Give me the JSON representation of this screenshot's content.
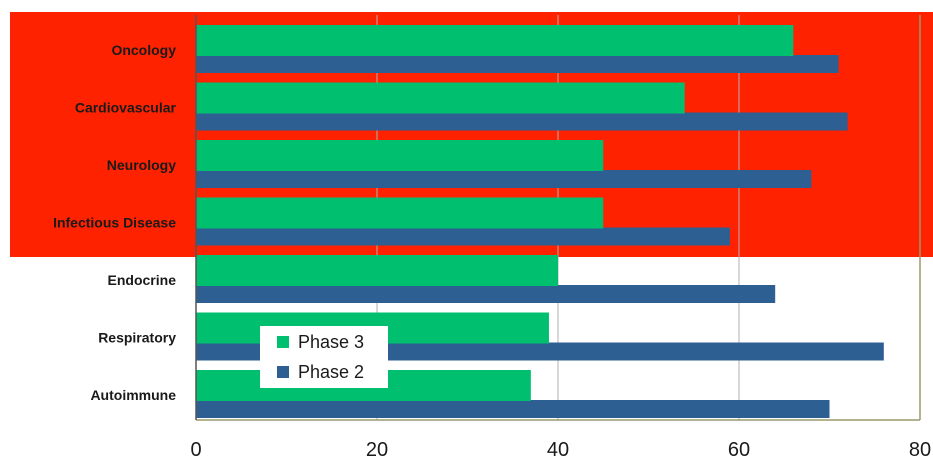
{
  "chart_data": {
    "type": "bar",
    "orientation": "horizontal",
    "categories": [
      "Oncology",
      "Cardiovascular",
      "Neurology",
      "Infectious Disease",
      "Endocrine",
      "Respiratory",
      "Autoimmune"
    ],
    "series": [
      {
        "name": "Phase 3",
        "color": "#00c070",
        "values": [
          66,
          54,
          45,
          45,
          40,
          39,
          37
        ]
      },
      {
        "name": "Phase 2",
        "color": "#2e5f93",
        "values": [
          71,
          72,
          68,
          59,
          64,
          76,
          70
        ]
      }
    ],
    "xlim": [
      0,
      80
    ],
    "xticks": [
      "0",
      "20",
      "40",
      "60",
      "80"
    ],
    "grid": "vertical",
    "legend": "inside-lower-left",
    "highlight": {
      "color": "#ff2200",
      "categories": [
        "Oncology",
        "Cardiovascular",
        "Neurology",
        "Infectious Disease"
      ]
    }
  }
}
